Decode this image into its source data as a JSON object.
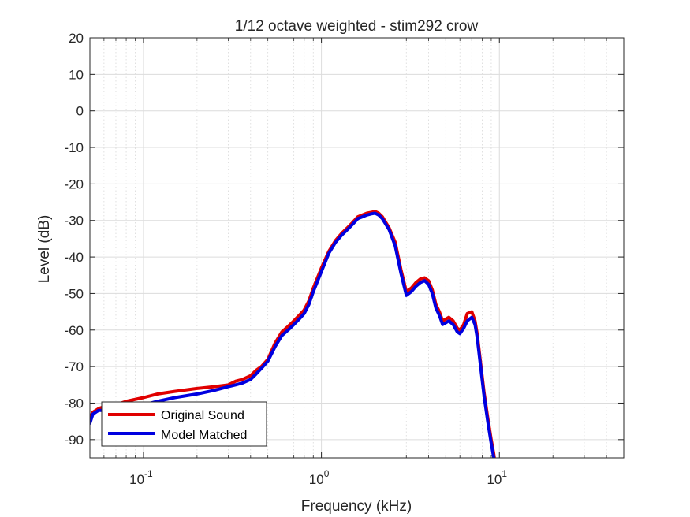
{
  "chart_data": {
    "type": "line",
    "title": "1/12 octave weighted - stim292 crow",
    "xlabel": "Frequency (kHz)",
    "ylabel": "Level (dB)",
    "xscale": "log",
    "xlim": [
      0.05,
      50
    ],
    "ylim": [
      -95,
      20
    ],
    "yticks": [
      20,
      10,
      0,
      -10,
      -20,
      -30,
      -40,
      -50,
      -60,
      -70,
      -80,
      -90
    ],
    "xticks": [
      {
        "value": 0.1,
        "base": "10",
        "exp": "-1"
      },
      {
        "value": 1,
        "base": "10",
        "exp": "0"
      },
      {
        "value": 10,
        "base": "10",
        "exp": "1"
      }
    ],
    "grid": true,
    "minor_grid": true,
    "legend_location": "bottom-left",
    "series": [
      {
        "name": "Original Sound",
        "color": "#e00000",
        "x": [
          0.05,
          0.052,
          0.056,
          0.06,
          0.07,
          0.08,
          0.1,
          0.12,
          0.15,
          0.2,
          0.25,
          0.3,
          0.33,
          0.36,
          0.4,
          0.43,
          0.46,
          0.5,
          0.55,
          0.6,
          0.65,
          0.7,
          0.75,
          0.8,
          0.85,
          0.9,
          1.0,
          1.1,
          1.2,
          1.3,
          1.4,
          1.5,
          1.6,
          1.7,
          1.8,
          1.9,
          2.0,
          2.1,
          2.2,
          2.4,
          2.6,
          2.8,
          3.0,
          3.2,
          3.4,
          3.6,
          3.8,
          4.0,
          4.2,
          4.4,
          4.6,
          4.8,
          5.0,
          5.2,
          5.5,
          5.8,
          6.0,
          6.3,
          6.6,
          7.0,
          7.3,
          7.5,
          7.8,
          8.2,
          8.6,
          9.0,
          9.3,
          9.5
        ],
        "y": [
          -84,
          -82.5,
          -81.5,
          -81,
          -80.5,
          -79.5,
          -78.5,
          -77.5,
          -76.8,
          -76,
          -75.5,
          -75,
          -74,
          -73.5,
          -72.5,
          -71,
          -70,
          -68,
          -63.5,
          -60.5,
          -59,
          -57.5,
          -56,
          -54.5,
          -52,
          -48.5,
          -43,
          -38.5,
          -35.5,
          -33.5,
          -32,
          -30.5,
          -29,
          -28.5,
          -28,
          -27.8,
          -27.5,
          -28,
          -29,
          -32,
          -36,
          -43.5,
          -49.5,
          -48.5,
          -47,
          -46,
          -45.7,
          -46.5,
          -49,
          -53,
          -55,
          -57.5,
          -57,
          -56.5,
          -57.5,
          -59.5,
          -60,
          -58.5,
          -55.5,
          -55,
          -57.5,
          -61,
          -68,
          -77,
          -84,
          -90,
          -94,
          -97
        ]
      },
      {
        "name": "Model Matched",
        "color": "#0000e0",
        "x": [
          0.05,
          0.052,
          0.056,
          0.06,
          0.07,
          0.08,
          0.1,
          0.12,
          0.15,
          0.2,
          0.25,
          0.3,
          0.33,
          0.36,
          0.4,
          0.43,
          0.46,
          0.5,
          0.55,
          0.6,
          0.65,
          0.7,
          0.75,
          0.8,
          0.85,
          0.9,
          1.0,
          1.1,
          1.2,
          1.3,
          1.4,
          1.5,
          1.6,
          1.7,
          1.8,
          1.9,
          2.0,
          2.1,
          2.2,
          2.4,
          2.6,
          2.8,
          3.0,
          3.2,
          3.4,
          3.6,
          3.8,
          4.0,
          4.2,
          4.4,
          4.6,
          4.8,
          5.0,
          5.2,
          5.5,
          5.8,
          6.0,
          6.3,
          6.6,
          7.0,
          7.3,
          7.5,
          7.8,
          8.2,
          8.6,
          9.0,
          9.3,
          9.5
        ],
        "y": [
          -85.5,
          -83,
          -82,
          -82,
          -81.5,
          -81,
          -80.5,
          -79.5,
          -78.5,
          -77.5,
          -76.5,
          -75.5,
          -75,
          -74.5,
          -73.5,
          -72,
          -70.5,
          -68.5,
          -64.5,
          -61.5,
          -60,
          -58.5,
          -57,
          -55.5,
          -53,
          -49.5,
          -44,
          -39,
          -36,
          -34,
          -32.5,
          -31,
          -29.5,
          -29,
          -28.5,
          -28.2,
          -28,
          -28.5,
          -29.5,
          -32.5,
          -37,
          -44.5,
          -50.5,
          -49.5,
          -48,
          -47,
          -46.5,
          -47.5,
          -50,
          -54,
          -56,
          -58.5,
          -58,
          -57.5,
          -58.5,
          -60.5,
          -61,
          -59.5,
          -57.5,
          -56.5,
          -58.5,
          -62,
          -69,
          -78,
          -85,
          -91,
          -95,
          -98
        ]
      }
    ]
  }
}
